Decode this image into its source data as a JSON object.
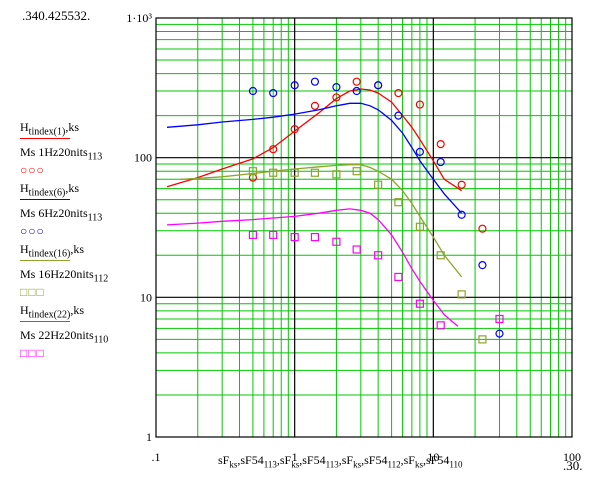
{
  "chart_data": {
    "type": "line",
    "title": "",
    "xscale": "log",
    "yscale": "log",
    "xlim": [
      0.1,
      100
    ],
    "ylim": [
      1,
      1000
    ],
    "x_tick_labels": [
      {
        "value": 0.1,
        "label": ".1"
      },
      {
        "value": 1,
        "label": "1"
      },
      {
        "value": 10,
        "label": "10"
      },
      {
        "value": 100,
        "label": "100"
      }
    ],
    "y_tick_labels": [
      {
        "value": 1,
        "label": "1"
      },
      {
        "value": 10,
        "label": "10"
      },
      {
        "value": 100,
        "label": "100"
      },
      {
        "value": 1000,
        "label": "1·10³"
      }
    ],
    "y_max_marker": ".340.425532.",
    "x_max_marker": ".30.",
    "xlabel": "sF_ks, sF54_113, sF_ks, sF54_113, sF_ks, sF54_112, sF_ks, sF54_110",
    "xlabel_parts": [
      {
        "t": "sF",
        "s": "ks"
      },
      {
        "t": ",sF54",
        "s": "113"
      },
      {
        "t": ",sF",
        "s": "ks"
      },
      {
        "t": ",sF54",
        "s": "113"
      },
      {
        "t": ",sF",
        "s": "ks"
      },
      {
        "t": ",sF54",
        "s": "112"
      },
      {
        "t": ",sF",
        "s": "ks"
      },
      {
        "t": ",sF54",
        "s": "110"
      }
    ],
    "series": [
      {
        "name": "H tindex(1),ks",
        "kind": "line",
        "color": "#ff0000",
        "x": [
          0.12,
          0.2,
          0.3,
          0.5,
          0.7,
          1,
          1.5,
          2,
          2.5,
          3,
          3.5,
          4,
          5,
          6,
          7,
          8,
          10,
          12,
          16
        ],
        "y": [
          62,
          72,
          83,
          98,
          118,
          155,
          210,
          265,
          300,
          310,
          305,
          290,
          250,
          200,
          165,
          135,
          95,
          70,
          58
        ]
      },
      {
        "name": "Ms 1Hz20nits 113",
        "kind": "circle",
        "color": "#ff0000",
        "x": [
          0.5,
          0.7,
          1,
          1.4,
          2,
          2.8,
          4,
          5.6,
          8,
          11.3,
          16,
          22.6
        ],
        "y": [
          72,
          115,
          160,
          235,
          270,
          350,
          330,
          290,
          240,
          125,
          64,
          31
        ]
      },
      {
        "name": "H tindex(6),ks",
        "kind": "line",
        "color": "#0000ff",
        "x": [
          0.12,
          0.2,
          0.3,
          0.5,
          0.7,
          1,
          1.5,
          2,
          2.5,
          3,
          3.5,
          4,
          5,
          6,
          7,
          8,
          10,
          12,
          16
        ],
        "y": [
          165,
          172,
          180,
          188,
          195,
          205,
          220,
          235,
          245,
          245,
          235,
          220,
          185,
          150,
          118,
          95,
          70,
          55,
          40
        ]
      },
      {
        "name": "Ms 6Hz20nits 113",
        "kind": "circle",
        "color": "#0000ff",
        "x": [
          0.5,
          0.7,
          1,
          1.4,
          2,
          2.8,
          4,
          5.6,
          8,
          11.3,
          16,
          22.6,
          30
        ],
        "y": [
          300,
          290,
          330,
          350,
          320,
          300,
          330,
          200,
          110,
          93,
          39,
          17,
          5.5
        ]
      },
      {
        "name": "H tindex(16),ks",
        "kind": "line",
        "color": "#8ea42a",
        "x": [
          0.15,
          0.2,
          0.3,
          0.5,
          0.7,
          1,
          1.5,
          2,
          2.5,
          3,
          3.5,
          4,
          5,
          6,
          7,
          8,
          10,
          12,
          16
        ],
        "y": [
          70,
          71,
          73,
          77,
          80,
          83,
          86,
          88,
          89,
          89,
          85,
          80,
          70,
          58,
          47,
          38,
          27,
          20,
          14
        ]
      },
      {
        "name": "Ms 16Hz20nits 112",
        "kind": "square",
        "color": "#8ea42a",
        "x": [
          0.5,
          0.7,
          1,
          1.4,
          2,
          2.8,
          4,
          5.6,
          8,
          11.3,
          16,
          22.6
        ],
        "y": [
          80,
          78,
          78,
          78,
          76,
          80,
          64,
          48,
          32,
          20,
          10.5,
          5
        ]
      },
      {
        "name": "H tindex(22),ks",
        "kind": "line",
        "color": "#ff00ff",
        "x": [
          0.12,
          0.2,
          0.3,
          0.5,
          0.7,
          1,
          1.5,
          2,
          2.5,
          3,
          3.5,
          4,
          5,
          6,
          7,
          8,
          10,
          12,
          15
        ],
        "y": [
          33,
          34,
          35,
          36,
          37,
          38,
          40,
          42,
          43,
          42,
          40,
          36,
          28,
          21,
          16,
          13,
          9.5,
          7.5,
          6.2
        ]
      },
      {
        "name": "Ms 22Hz20nits 110",
        "kind": "square",
        "color": "#ff00ff",
        "x": [
          0.5,
          0.7,
          1,
          1.4,
          2,
          2.8,
          4,
          5.6,
          8,
          11.3,
          30
        ],
        "y": [
          28,
          28,
          27,
          27,
          25,
          22,
          20,
          14,
          9,
          6.3,
          7
        ]
      }
    ]
  },
  "legend": [
    {
      "kind": "line",
      "main": "H",
      "sub": "tindex(1)",
      "tail": ",ks",
      "color": "#ff0000"
    },
    {
      "kind": "marker",
      "main": "Ms 1Hz20nits",
      "sub": "113",
      "symbols": "○○○",
      "color": "#ff0000"
    },
    {
      "kind": "line",
      "main": "H",
      "sub": "tindex(6)",
      "tail": ",ks",
      "color": "#0000ff"
    },
    {
      "kind": "marker",
      "main": "Ms 6Hz20nits",
      "sub": "113",
      "symbols": "○○○",
      "color": "#0000ff"
    },
    {
      "kind": "line",
      "main": "H",
      "sub": "tindex(16)",
      "tail": ",ks",
      "color": "#8ea42a"
    },
    {
      "kind": "marker",
      "main": "Ms 16Hz20nits",
      "sub": "112",
      "symbols": "□□□",
      "color": "#8ea42a"
    },
    {
      "kind": "line",
      "main": "H",
      "sub": "tindex(22)",
      "tail": ",ks",
      "color": "#ff00ff"
    },
    {
      "kind": "marker",
      "main": "Ms 22Hz20nits",
      "sub": "110",
      "symbols": "□□□",
      "color": "#ff00ff"
    }
  ],
  "colors": {
    "grid_minor": "#00c800",
    "grid_major": "#000000",
    "axis": "#000000"
  }
}
